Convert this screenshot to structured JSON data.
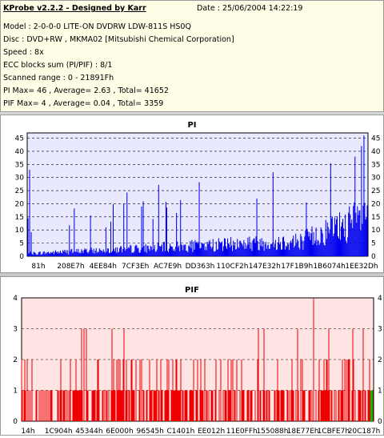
{
  "header": {
    "title": "KProbe v2.2.2 - Designed by Karr",
    "date": "Date : 25/06/2004 14:22:19",
    "lines": [
      "Model : 2-0-0-0 LITE-ON DVDRW LDW-811S   HS0Q",
      "Disc : DVD+RW , MKMA02 [Mitsubishi Chemical Corporation]",
      "Speed : 8x",
      "ECC blocks sum (PI/PIF) : 8/1",
      "Scanned range : 0 - 21891Fh",
      "PI Max= 46 , Average= 2.63 , Total= 41652",
      "PIF Max= 4 , Average= 0.04 , Total= 3359"
    ]
  },
  "colors": {
    "pi": "#0000ee",
    "pif": "#ee0000",
    "pif_bg": "#ffe4e4",
    "pi_bg": "#e8e8ff",
    "marker": "#00c000"
  },
  "chart_data": [
    {
      "type": "bar",
      "title": "PI",
      "ylim": [
        0,
        47
      ],
      "y_ticks_left": [
        "0",
        "5",
        "10",
        "15",
        "20",
        "25",
        "30",
        "35",
        "40",
        "45"
      ],
      "y_ticks_right": [
        "0",
        "5",
        "10",
        "15",
        "20",
        "25",
        "30",
        "35",
        "40",
        "45"
      ],
      "x_tick_labels": [
        "81h",
        "208E7h",
        "4EE84h",
        "7CF3Eh",
        "AC7E9h",
        "DD363h",
        "110CF2h",
        "147E32h",
        "17F1B9h",
        "1B6074h",
        "1EE32Dh"
      ],
      "grid": true,
      "summary": {
        "max": 46,
        "average": 2.63,
        "total": 41652
      }
    },
    {
      "type": "bar",
      "title": "PIF",
      "ylim": [
        0,
        4
      ],
      "y_ticks_left": [
        "0",
        "1",
        "2",
        "3",
        "4"
      ],
      "y_ticks_right": [
        "0",
        "1",
        "2",
        "3",
        "4"
      ],
      "x_tick_labels": [
        "14h",
        "1C904h",
        "45344h",
        "6E000h",
        "96545h",
        "C1401h",
        "EE012h",
        "11E0FFh",
        "155088h",
        "18E77Eh",
        "1CBFE7h",
        "20C187h"
      ],
      "grid": true,
      "summary": {
        "max": 4,
        "average": 0.04,
        "total": 3359
      }
    }
  ]
}
